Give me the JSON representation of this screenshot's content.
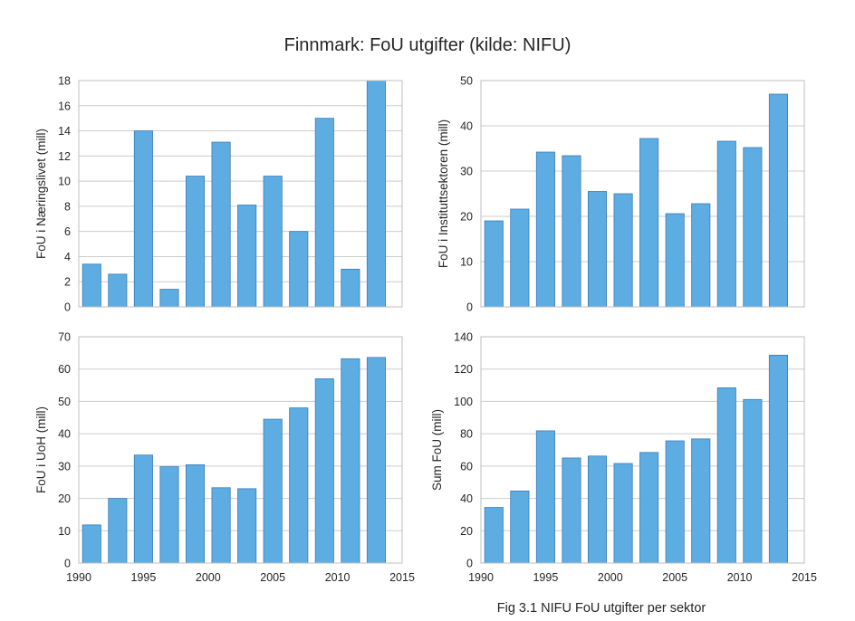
{
  "title": "Finnmark: FoU utgifter (kilde: NIFU)",
  "caption": "Fig 3.1 NIFU FoU utgifter per sektor",
  "colors": {
    "bar": "#5DADE2",
    "bar_edge": "#3c7ab8",
    "grid": "#cccccc"
  },
  "chart_data": [
    {
      "type": "bar",
      "ylabel": "FoU i Næringslivet (mill)",
      "x": [
        1991,
        1993,
        1995,
        1997,
        1999,
        2001,
        2003,
        2005,
        2007,
        2009,
        2011,
        2013
      ],
      "values": [
        3.4,
        2.6,
        14.0,
        1.4,
        10.4,
        13.1,
        8.1,
        10.4,
        6.0,
        15.0,
        3.0,
        18.0
      ],
      "xlim": [
        1990,
        2015
      ],
      "ylim": [
        0,
        18
      ],
      "yticks": [
        0,
        2,
        4,
        6,
        8,
        10,
        12,
        14,
        16,
        18
      ],
      "xticks": [
        1990,
        1995,
        2000,
        2005,
        2010,
        2015
      ],
      "show_xtick_labels": false,
      "grid": true
    },
    {
      "type": "bar",
      "ylabel": "FoU i Instituttsektoren (mill)",
      "x": [
        1991,
        1993,
        1995,
        1997,
        1999,
        2001,
        2003,
        2005,
        2007,
        2009,
        2011,
        2013
      ],
      "values": [
        19.0,
        21.6,
        34.2,
        33.4,
        25.5,
        25.0,
        37.2,
        20.6,
        22.8,
        36.6,
        35.2,
        47.0
      ],
      "xlim": [
        1990,
        2015
      ],
      "ylim": [
        0,
        50
      ],
      "yticks": [
        0,
        10,
        20,
        30,
        40,
        50
      ],
      "xticks": [
        1990,
        1995,
        2000,
        2005,
        2010,
        2015
      ],
      "show_xtick_labels": false,
      "grid": true
    },
    {
      "type": "bar",
      "ylabel": "FoU i UoH (mill)",
      "x": [
        1991,
        1993,
        1995,
        1997,
        1999,
        2001,
        2003,
        2005,
        2007,
        2009,
        2011,
        2013
      ],
      "values": [
        11.8,
        20.0,
        33.4,
        29.8,
        30.4,
        23.3,
        23.0,
        44.5,
        48.0,
        57.0,
        63.2,
        63.6
      ],
      "xlim": [
        1990,
        2015
      ],
      "ylim": [
        0,
        70
      ],
      "yticks": [
        0,
        10,
        20,
        30,
        40,
        50,
        60,
        70
      ],
      "xticks": [
        1990,
        1995,
        2000,
        2005,
        2010,
        2015
      ],
      "show_xtick_labels": true,
      "grid": true
    },
    {
      "type": "bar",
      "ylabel": "Sum FoU (mill)",
      "x": [
        1991,
        1993,
        1995,
        1997,
        1999,
        2001,
        2003,
        2005,
        2007,
        2009,
        2011,
        2013
      ],
      "values": [
        34.4,
        44.6,
        81.8,
        65.0,
        66.2,
        61.6,
        68.4,
        75.6,
        76.8,
        108.4,
        101.2,
        128.6
      ],
      "xlim": [
        1990,
        2015
      ],
      "ylim": [
        0,
        140
      ],
      "yticks": [
        0,
        20,
        40,
        60,
        80,
        100,
        120,
        140
      ],
      "xticks": [
        1990,
        1995,
        2000,
        2005,
        2010,
        2015
      ],
      "show_xtick_labels": true,
      "grid": true
    }
  ]
}
